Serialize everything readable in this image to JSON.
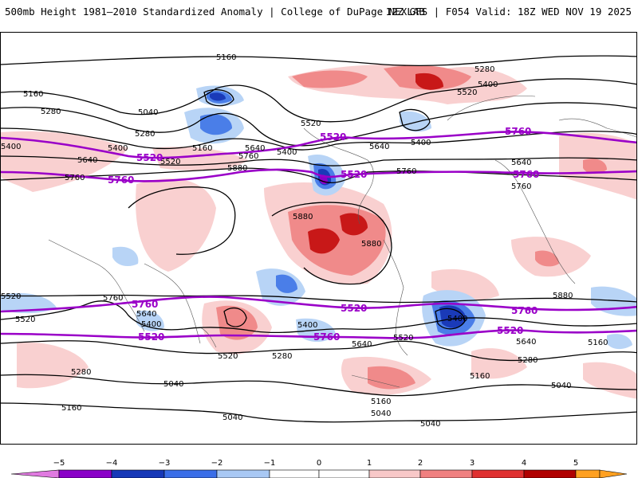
{
  "header": {
    "title": "500mb Height 1981–2010 Standardized Anomaly | College of DuPage NEXLAB",
    "run_info": "12Z GFS | F054 Valid: 18Z WED NOV 19 2025"
  },
  "contour_labels": {
    "c1": "5160",
    "c2": "5280",
    "c3": "5400",
    "c4": "5520",
    "c5": "5160",
    "c6": "5040",
    "c7": "5280",
    "c8": "5160",
    "c9": "5400",
    "c10": "5640",
    "c11": "5520",
    "c12": "5760",
    "c13": "5640",
    "c14": "5400",
    "c15": "5520",
    "c16": "5880",
    "c17": "5640",
    "c18": "5400",
    "c19": "5760",
    "c20": "5880",
    "c21": "5880",
    "c22": "5640",
    "c23": "5760",
    "c24": "5760",
    "c25": "5760",
    "c26": "5880",
    "c27": "5520",
    "c28": "5400",
    "c29": "5640",
    "c30": "5400",
    "c31": "5640",
    "c32": "5520",
    "c33": "5280",
    "c34": "5400",
    "c35": "5640",
    "c36": "5520",
    "c37": "5280",
    "c38": "5160",
    "c39": "5280",
    "c40": "5040",
    "c41": "5160",
    "c42": "5160",
    "c43": "5040",
    "c44": "5040",
    "c45": "5040",
    "c46": "5040",
    "c47": "5160",
    "c48": "5280",
    "c49": "5400",
    "c50": "5520"
  },
  "highlight_labels": {
    "p1": "5520",
    "p2": "5760",
    "p3": "5520",
    "p4": "5760",
    "p5": "5520",
    "p6": "5760",
    "p7": "5760",
    "p8": "5520",
    "p9": "5760",
    "p10": "5520",
    "p11": "5760",
    "p12": "5520"
  },
  "colorbar": {
    "ticks": [
      "−5",
      "−4",
      "−3",
      "−2",
      "−1",
      "0",
      "1",
      "2",
      "3",
      "4",
      "5"
    ],
    "colors": [
      "#e07ae0",
      "#8a00c8",
      "#1638b8",
      "#3a6ee8",
      "#a8c8f4",
      "#ffffff",
      "#f8c8c8",
      "#f08080",
      "#e03030",
      "#b00000",
      "#ffa020"
    ]
  },
  "colors": {
    "highlight_contour": "#9a00c8",
    "contour": "#000000",
    "pos_light": "#f9d0d0",
    "pos_mid": "#f08a8a",
    "pos_dark": "#c81818",
    "neg_light": "#b8d4f6",
    "neg_mid": "#4a7ee8",
    "neg_dark": "#1a3ab8"
  }
}
